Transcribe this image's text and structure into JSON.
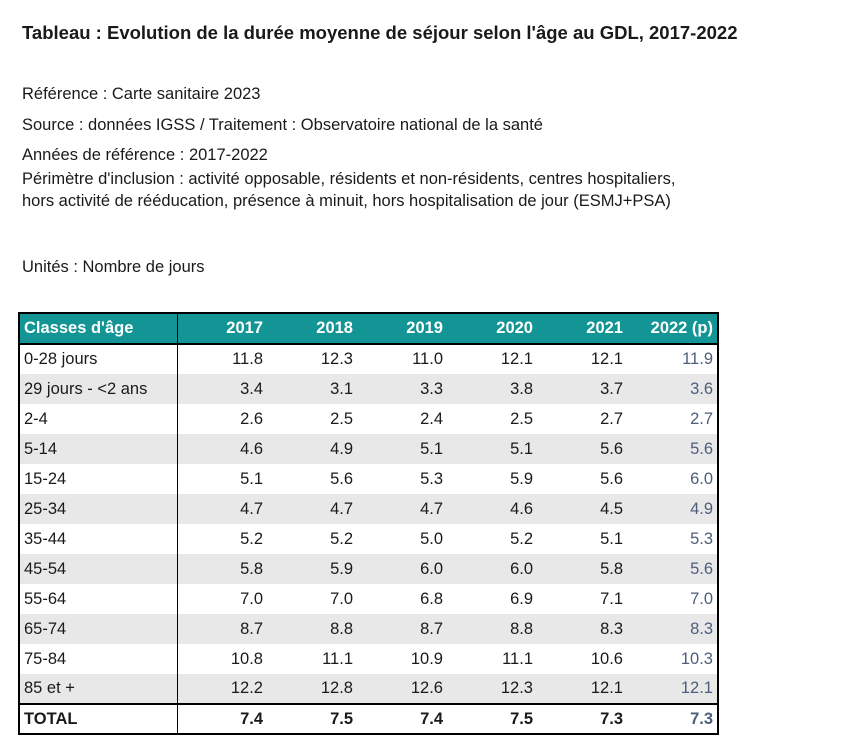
{
  "title": "Tableau : Evolution de la durée moyenne de séjour selon l'âge au GDL, 2017-2022",
  "reference": "Référence : Carte sanitaire 2023",
  "source": "Source : données IGSS / Traitement : Observatoire national de la santé",
  "annees": "Années de référence : 2017-2022",
  "perimetre_line1": "Périmètre d'inclusion : activité opposable, résidents et non-résidents, centres hospitaliers,",
  "perimetre_line2": "hors activité de rééducation, présence à minuit, hors hospitalisation de jour (ESMJ+PSA)",
  "unites": "Unités : Nombre de jours",
  "table": {
    "header": [
      "Classes d'âge",
      "2017",
      "2018",
      "2019",
      "2020",
      "2021",
      "2022 (p)"
    ],
    "rows": [
      {
        "label": "0-28 jours",
        "values": [
          "11.8",
          "12.3",
          "11.0",
          "12.1",
          "12.1",
          "11.9"
        ]
      },
      {
        "label": "29 jours - <2 ans",
        "values": [
          "3.4",
          "3.1",
          "3.3",
          "3.8",
          "3.7",
          "3.6"
        ]
      },
      {
        "label": "2-4",
        "values": [
          "2.6",
          "2.5",
          "2.4",
          "2.5",
          "2.7",
          "2.7"
        ]
      },
      {
        "label": "5-14",
        "values": [
          "4.6",
          "4.9",
          "5.1",
          "5.1",
          "5.6",
          "5.6"
        ]
      },
      {
        "label": "15-24",
        "values": [
          "5.1",
          "5.6",
          "5.3",
          "5.9",
          "5.6",
          "6.0"
        ]
      },
      {
        "label": "25-34",
        "values": [
          "4.7",
          "4.7",
          "4.7",
          "4.6",
          "4.5",
          "4.9"
        ]
      },
      {
        "label": "35-44",
        "values": [
          "5.2",
          "5.2",
          "5.0",
          "5.2",
          "5.1",
          "5.3"
        ]
      },
      {
        "label": "45-54",
        "values": [
          "5.8",
          "5.9",
          "6.0",
          "6.0",
          "5.8",
          "5.6"
        ]
      },
      {
        "label": "55-64",
        "values": [
          "7.0",
          "7.0",
          "6.8",
          "6.9",
          "7.1",
          "7.0"
        ]
      },
      {
        "label": "65-74",
        "values": [
          "8.7",
          "8.8",
          "8.7",
          "8.8",
          "8.3",
          "8.3"
        ]
      },
      {
        "label": "75-84",
        "values": [
          "10.8",
          "11.1",
          "10.9",
          "11.1",
          "10.6",
          "10.3"
        ]
      },
      {
        "label": "85 et +",
        "values": [
          "12.2",
          "12.8",
          "12.6",
          "12.3",
          "12.1",
          "12.1"
        ]
      }
    ],
    "total": {
      "label": "TOTAL",
      "values": [
        "7.4",
        "7.5",
        "7.4",
        "7.5",
        "7.3",
        "7.3"
      ]
    }
  },
  "colors": {
    "header_bg": "#139595",
    "alt_row_bg": "#e8e8e8",
    "projection_text": "#4c5e7b"
  }
}
